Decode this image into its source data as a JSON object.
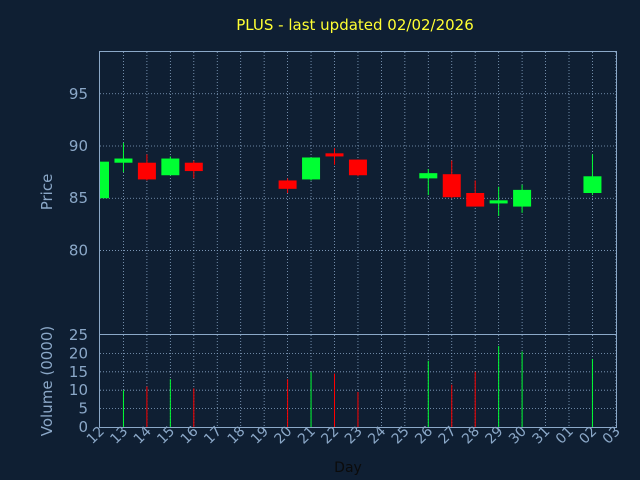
{
  "title": "PLUS - last updated 02/02/2026",
  "colors": {
    "background": "#0f1f33",
    "axis": "#8ba8c8",
    "title": "#ffff33",
    "up": "#00ff33",
    "down": "#ff0000",
    "xlabel": "#0b0b0b"
  },
  "chart_data": [
    {
      "type": "candlestick",
      "ylabel": "Price",
      "ylim": [
        72,
        99
      ],
      "yticks": [
        80,
        85,
        90,
        95
      ],
      "grid": true,
      "x_tick_labels": [
        "12",
        "13",
        "14",
        "15",
        "16",
        "17",
        "18",
        "19",
        "20",
        "21",
        "22",
        "23",
        "24",
        "25",
        "26",
        "27",
        "28",
        "29",
        "30",
        "31",
        "01",
        "02",
        "03"
      ],
      "candles": [
        {
          "day": "12",
          "open": 85.0,
          "close": 88.5,
          "high": 88.5,
          "low": 85.0
        },
        {
          "day": "13",
          "open": 88.4,
          "close": 88.8,
          "high": 90.3,
          "low": 87.5
        },
        {
          "day": "14",
          "open": 88.4,
          "close": 86.8,
          "high": 89.2,
          "low": 86.7
        },
        {
          "day": "15",
          "open": 87.2,
          "close": 88.8,
          "high": 89.0,
          "low": 87.2
        },
        {
          "day": "16",
          "open": 88.4,
          "close": 87.6,
          "high": 88.6,
          "low": 86.9
        },
        {
          "day": "20",
          "open": 86.7,
          "close": 85.9,
          "high": 86.9,
          "low": 85.5
        },
        {
          "day": "21",
          "open": 86.8,
          "close": 88.9,
          "high": 88.9,
          "low": 86.7
        },
        {
          "day": "22",
          "open": 89.3,
          "close": 89.0,
          "high": 89.8,
          "low": 88.2
        },
        {
          "day": "23",
          "open": 88.7,
          "close": 87.2,
          "high": 88.7,
          "low": 87.1
        },
        {
          "day": "26",
          "open": 86.9,
          "close": 87.4,
          "high": 87.8,
          "low": 85.3
        },
        {
          "day": "27",
          "open": 87.3,
          "close": 85.1,
          "high": 88.6,
          "low": 85.0
        },
        {
          "day": "28",
          "open": 85.5,
          "close": 84.2,
          "high": 86.7,
          "low": 84.2
        },
        {
          "day": "29",
          "open": 84.5,
          "close": 84.8,
          "high": 86.1,
          "low": 83.3
        },
        {
          "day": "30",
          "open": 84.2,
          "close": 85.8,
          "high": 86.3,
          "low": 83.6
        },
        {
          "day": "02",
          "open": 85.5,
          "close": 87.1,
          "high": 89.2,
          "low": 85.3
        }
      ]
    },
    {
      "type": "bar",
      "ylabel": "Volume (0000)",
      "xlabel": "Day",
      "ylim": [
        0,
        25
      ],
      "yticks": [
        0,
        5,
        10,
        15,
        20,
        25
      ],
      "grid": true,
      "x_tick_labels": [
        "12",
        "13",
        "14",
        "15",
        "16",
        "17",
        "18",
        "19",
        "20",
        "21",
        "22",
        "23",
        "24",
        "25",
        "26",
        "27",
        "28",
        "29",
        "30",
        "31",
        "01",
        "02",
        "03"
      ],
      "bars": [
        {
          "day": "13",
          "value": 10.0,
          "direction": "up"
        },
        {
          "day": "14",
          "value": 11.0,
          "direction": "down"
        },
        {
          "day": "15",
          "value": 13.0,
          "direction": "up"
        },
        {
          "day": "16",
          "value": 10.5,
          "direction": "down"
        },
        {
          "day": "20",
          "value": 13.0,
          "direction": "down"
        },
        {
          "day": "21",
          "value": 15.0,
          "direction": "up"
        },
        {
          "day": "22",
          "value": 14.5,
          "direction": "down"
        },
        {
          "day": "23",
          "value": 9.5,
          "direction": "down"
        },
        {
          "day": "26",
          "value": 18.0,
          "direction": "up"
        },
        {
          "day": "27",
          "value": 11.5,
          "direction": "down"
        },
        {
          "day": "28",
          "value": 15.0,
          "direction": "down"
        },
        {
          "day": "29",
          "value": 22.0,
          "direction": "up"
        },
        {
          "day": "30",
          "value": 20.5,
          "direction": "up"
        },
        {
          "day": "02",
          "value": 18.5,
          "direction": "up"
        }
      ]
    }
  ]
}
